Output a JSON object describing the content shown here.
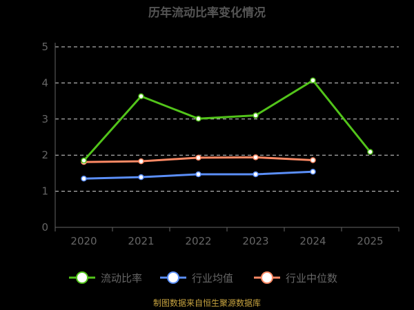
{
  "chart_data": {
    "type": "line",
    "title": "历年流动比率变化情况",
    "categories": [
      "2020",
      "2021",
      "2022",
      "2023",
      "2024",
      "2025"
    ],
    "ylim": [
      0,
      5
    ],
    "yticks": [
      "0",
      "1",
      "2",
      "3",
      "4",
      "5"
    ],
    "grid": true,
    "legend_position": "bottom",
    "series": [
      {
        "name": "流动比率",
        "color": "#52c41a",
        "values": [
          1.85,
          3.63,
          3.01,
          3.1,
          4.07,
          2.09
        ]
      },
      {
        "name": "行业均值",
        "color": "#5b8ff9",
        "values": [
          1.35,
          1.39,
          1.47,
          1.47,
          1.54,
          null
        ]
      },
      {
        "name": "行业中位数",
        "color": "#ff8a65",
        "values": [
          1.81,
          1.83,
          1.93,
          1.94,
          1.86,
          null
        ]
      }
    ]
  },
  "footer": {
    "source": "制图数据来自恒生聚源数据库"
  }
}
